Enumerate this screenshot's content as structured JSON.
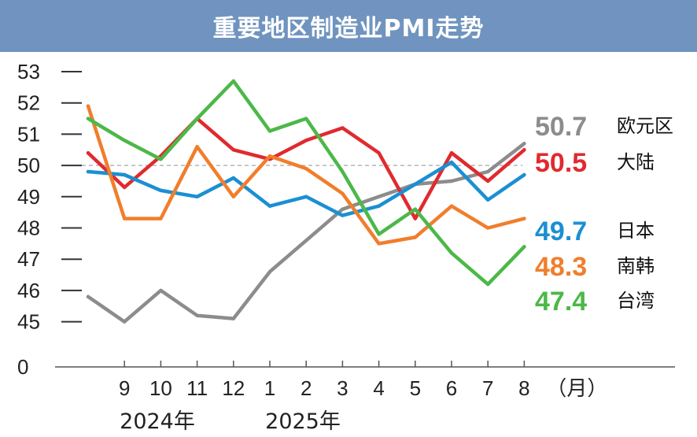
{
  "header": {
    "title": "重要地区制造业PMI走势"
  },
  "chart_data": {
    "type": "line",
    "title": "重要地区制造业PMI走势",
    "x": [
      "8",
      "9",
      "10",
      "11",
      "12",
      "1",
      "2",
      "3",
      "4",
      "5",
      "6",
      "7",
      "8"
    ],
    "x_tick_labels": [
      "9",
      "10",
      "11",
      "12",
      "1",
      "2",
      "3",
      "4",
      "5",
      "6",
      "7",
      "8"
    ],
    "x_unit": "（月）",
    "year_labels": [
      "2024年",
      "2025年"
    ],
    "y_ticks": [
      "53",
      "52",
      "51",
      "50",
      "49",
      "48",
      "47",
      "46",
      "45",
      "0"
    ],
    "ylim": [
      45,
      53
    ],
    "y_axis_break": true,
    "reference_line": 50,
    "grid": false,
    "legend": "right-end-labels",
    "series": [
      {
        "name": "欧元区",
        "color": "#8c8c8c",
        "last_label": "50.7",
        "values": [
          45.8,
          45.0,
          46.0,
          45.2,
          45.1,
          46.6,
          47.6,
          48.6,
          49.0,
          49.4,
          49.5,
          49.8,
          50.7
        ]
      },
      {
        "name": "大陆",
        "color": "#e02a2f",
        "last_label": "50.5",
        "values": [
          50.4,
          49.3,
          50.3,
          51.5,
          50.5,
          50.2,
          50.8,
          51.2,
          50.4,
          48.3,
          50.4,
          49.5,
          50.5
        ]
      },
      {
        "name": "日本",
        "color": "#1b8fd3",
        "last_label": "49.7",
        "values": [
          49.8,
          49.7,
          49.2,
          49.0,
          49.6,
          48.7,
          49.0,
          48.4,
          48.7,
          49.4,
          50.1,
          48.9,
          49.7
        ]
      },
      {
        "name": "南韩",
        "color": "#f07e2c",
        "last_label": "48.3",
        "values": [
          51.9,
          48.3,
          48.3,
          50.6,
          49.0,
          50.3,
          49.9,
          49.1,
          47.5,
          47.7,
          48.7,
          48.0,
          48.3
        ]
      },
      {
        "name": "台湾",
        "color": "#4cb848",
        "last_label": "47.4",
        "values": [
          51.5,
          50.8,
          50.2,
          51.5,
          52.7,
          51.1,
          51.5,
          49.8,
          47.8,
          48.6,
          47.2,
          46.2,
          47.4
        ]
      }
    ]
  }
}
